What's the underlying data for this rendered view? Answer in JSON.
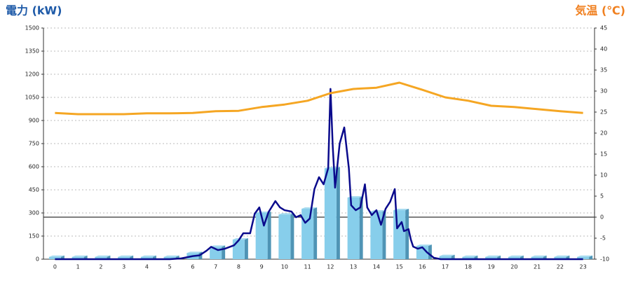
{
  "chart_data": {
    "type": "bar",
    "title": "電力 (kW)",
    "y2_title": "気温 (℃)",
    "categories": [
      "0",
      "1",
      "2",
      "3",
      "4",
      "5",
      "6",
      "7",
      "8",
      "9",
      "10",
      "11",
      "12",
      "13",
      "14",
      "15",
      "16",
      "17",
      "18",
      "19",
      "20",
      "21",
      "22",
      "23"
    ],
    "ylim": [
      0,
      1500
    ],
    "yticks": [
      0,
      150,
      300,
      450,
      600,
      750,
      900,
      1050,
      1200,
      1350,
      1500
    ],
    "y2lim": [
      -10,
      45
    ],
    "y2ticks": [
      -10,
      -5,
      0,
      5,
      10,
      15,
      20,
      25,
      30,
      35,
      40,
      45
    ],
    "grid": true,
    "series": [
      {
        "type": "bar",
        "color": "#87ceeb",
        "values": [
          15,
          15,
          15,
          15,
          15,
          15,
          40,
          80,
          127,
          300,
          290,
          327,
          590,
          400,
          309,
          318,
          86,
          20,
          15,
          15,
          15,
          15,
          15,
          15
        ]
      },
      {
        "type": "line",
        "color": "#0a0a8c",
        "x": [
          0,
          1,
          2,
          3,
          4,
          5,
          5.5,
          6,
          6.3,
          6.6,
          6.8,
          7.1,
          7.4,
          7.8,
          8,
          8.2,
          8.5,
          8.7,
          8.9,
          9.1,
          9.3,
          9.6,
          9.8,
          10,
          10.3,
          10.5,
          10.7,
          10.9,
          11.1,
          11.3,
          11.5,
          11.7,
          11.9,
          12,
          12.1,
          12.2,
          12.4,
          12.6,
          12.8,
          12.9,
          13.1,
          13.3,
          13.5,
          13.6,
          13.8,
          14,
          14.2,
          14.4,
          14.6,
          14.8,
          14.9,
          15.1,
          15.2,
          15.4,
          15.5,
          15.6,
          15.8,
          16,
          16.2,
          16.5,
          16.8,
          17,
          18,
          19,
          20,
          21,
          22,
          23
        ],
        "values": [
          0,
          0,
          0,
          0,
          0,
          0,
          5,
          20,
          25,
          55,
          80,
          59,
          68,
          90,
          122,
          168,
          168,
          295,
          336,
          218,
          305,
          377,
          336,
          318,
          309,
          272,
          286,
          236,
          264,
          455,
          532,
          486,
          590,
          1105,
          727,
          464,
          750,
          855,
          590,
          350,
          318,
          336,
          486,
          336,
          286,
          318,
          223,
          327,
          373,
          455,
          200,
          241,
          182,
          195,
          127,
          82,
          68,
          77,
          45,
          9,
          0,
          0,
          0,
          0,
          0,
          0,
          0,
          0
        ]
      },
      {
        "type": "line",
        "axis": "y2",
        "color": "#f5a623",
        "values": [
          24.8,
          24.5,
          24.5,
          24.5,
          24.7,
          24.7,
          24.8,
          25.2,
          25.3,
          26.2,
          26.8,
          27.7,
          29.5,
          30.5,
          30.8,
          32,
          30.3,
          28.5,
          27.7,
          26.5,
          26.2,
          25.7,
          25.2,
          24.8
        ]
      }
    ]
  }
}
